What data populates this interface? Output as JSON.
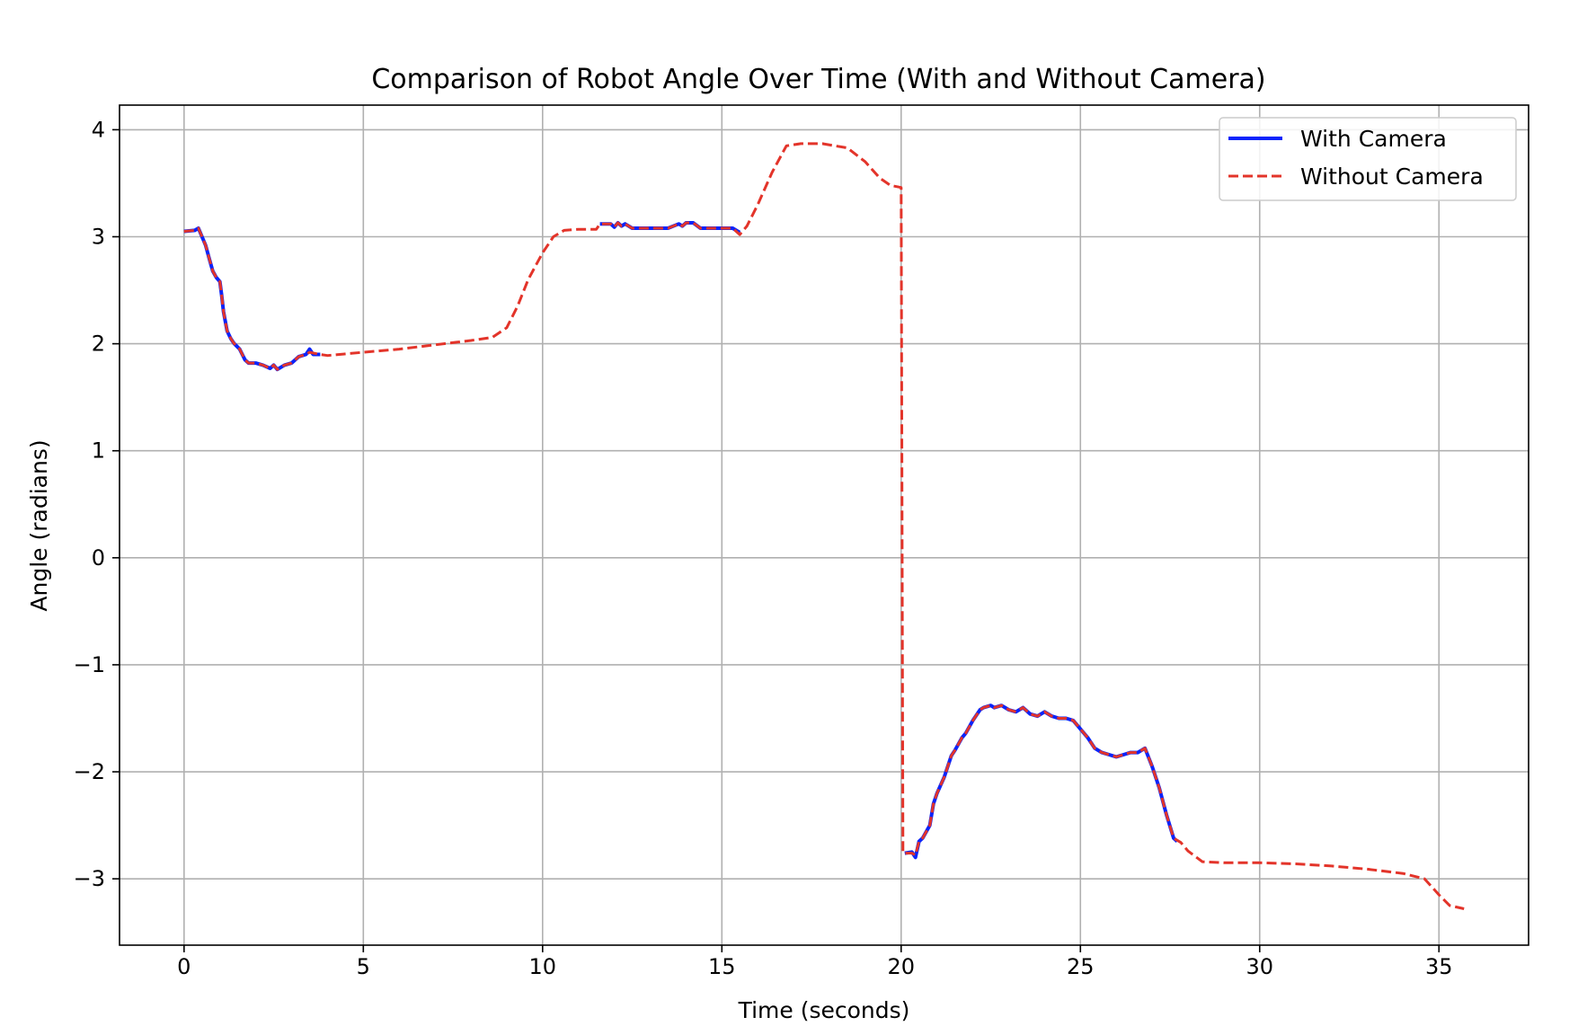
{
  "chart_data": {
    "type": "line",
    "title": "Comparison of Robot Angle Over Time (With and Without Camera)",
    "xlabel": "Time (seconds)",
    "ylabel": "Angle (radians)",
    "xlim": [
      -1.8,
      37.5
    ],
    "ylim": [
      -3.62,
      4.23
    ],
    "xticks": [
      0,
      5,
      10,
      15,
      20,
      25,
      30,
      35
    ],
    "yticks": [
      -3,
      -2,
      -1,
      0,
      1,
      2,
      3,
      4
    ],
    "xtick_labels": [
      "0",
      "5",
      "10",
      "15",
      "20",
      "25",
      "30",
      "35"
    ],
    "ytick_labels": [
      "−3",
      "−2",
      "−1",
      "0",
      "1",
      "2",
      "3",
      "4"
    ],
    "grid": true,
    "legend_position": "top-right",
    "series": [
      {
        "name": "With Camera",
        "color": "#0b24fb",
        "style": "solid",
        "segments": [
          [
            [
              0,
              3.05
            ],
            [
              0.3,
              3.06
            ],
            [
              0.4,
              3.08
            ],
            [
              0.5,
              3.0
            ],
            [
              0.6,
              2.92
            ],
            [
              0.7,
              2.8
            ],
            [
              0.8,
              2.68
            ],
            [
              0.9,
              2.62
            ],
            [
              1.0,
              2.58
            ],
            [
              1.05,
              2.45
            ],
            [
              1.1,
              2.3
            ],
            [
              1.2,
              2.12
            ],
            [
              1.3,
              2.05
            ],
            [
              1.4,
              2.0
            ],
            [
              1.55,
              1.95
            ],
            [
              1.7,
              1.85
            ],
            [
              1.8,
              1.82
            ],
            [
              2.0,
              1.82
            ],
            [
              2.2,
              1.8
            ],
            [
              2.4,
              1.77
            ],
            [
              2.5,
              1.8
            ],
            [
              2.6,
              1.76
            ],
            [
              2.8,
              1.8
            ],
            [
              3.0,
              1.82
            ],
            [
              3.2,
              1.88
            ],
            [
              3.4,
              1.9
            ],
            [
              3.5,
              1.95
            ],
            [
              3.6,
              1.9
            ],
            [
              3.8,
              1.9
            ]
          ],
          [
            [
              11.6,
              3.12
            ],
            [
              11.9,
              3.12
            ],
            [
              12.0,
              3.09
            ],
            [
              12.1,
              3.13
            ],
            [
              12.2,
              3.1
            ],
            [
              12.3,
              3.12
            ],
            [
              12.5,
              3.08
            ],
            [
              13.0,
              3.08
            ],
            [
              13.5,
              3.08
            ],
            [
              13.8,
              3.12
            ],
            [
              13.9,
              3.1
            ],
            [
              14.0,
              3.13
            ],
            [
              14.2,
              3.13
            ],
            [
              14.4,
              3.08
            ],
            [
              15.0,
              3.08
            ],
            [
              15.3,
              3.08
            ],
            [
              15.5,
              3.04
            ]
          ],
          [
            [
              20.1,
              -2.76
            ],
            [
              20.3,
              -2.75
            ],
            [
              20.4,
              -2.8
            ],
            [
              20.5,
              -2.65
            ],
            [
              20.6,
              -2.62
            ],
            [
              20.8,
              -2.5
            ],
            [
              20.9,
              -2.3
            ],
            [
              21.0,
              -2.2
            ],
            [
              21.2,
              -2.05
            ],
            [
              21.4,
              -1.85
            ],
            [
              21.5,
              -1.8
            ],
            [
              21.7,
              -1.68
            ],
            [
              21.8,
              -1.64
            ],
            [
              22.0,
              -1.52
            ],
            [
              22.2,
              -1.42
            ],
            [
              22.3,
              -1.4
            ],
            [
              22.5,
              -1.38
            ],
            [
              22.6,
              -1.4
            ],
            [
              22.8,
              -1.38
            ],
            [
              23.0,
              -1.42
            ],
            [
              23.2,
              -1.44
            ],
            [
              23.4,
              -1.4
            ],
            [
              23.6,
              -1.46
            ],
            [
              23.8,
              -1.48
            ],
            [
              24.0,
              -1.44
            ],
            [
              24.2,
              -1.48
            ],
            [
              24.4,
              -1.5
            ],
            [
              24.6,
              -1.5
            ],
            [
              24.8,
              -1.52
            ],
            [
              25.0,
              -1.6
            ],
            [
              25.2,
              -1.68
            ],
            [
              25.4,
              -1.78
            ],
            [
              25.6,
              -1.82
            ],
            [
              25.8,
              -1.84
            ],
            [
              26.0,
              -1.86
            ],
            [
              26.2,
              -1.84
            ],
            [
              26.4,
              -1.82
            ],
            [
              26.6,
              -1.82
            ],
            [
              26.8,
              -1.78
            ],
            [
              27.0,
              -1.95
            ],
            [
              27.2,
              -2.15
            ],
            [
              27.4,
              -2.4
            ],
            [
              27.6,
              -2.62
            ],
            [
              27.7,
              -2.65
            ]
          ]
        ]
      },
      {
        "name": "Without Camera",
        "color": "#e3342a",
        "style": "dashed",
        "segments": [
          [
            [
              0,
              3.05
            ],
            [
              0.3,
              3.06
            ],
            [
              0.4,
              3.08
            ],
            [
              0.5,
              3.0
            ],
            [
              0.6,
              2.92
            ],
            [
              0.7,
              2.8
            ],
            [
              0.8,
              2.68
            ],
            [
              0.9,
              2.62
            ],
            [
              1.0,
              2.58
            ],
            [
              1.05,
              2.45
            ],
            [
              1.1,
              2.3
            ],
            [
              1.2,
              2.12
            ],
            [
              1.3,
              2.05
            ],
            [
              1.4,
              2.0
            ],
            [
              1.55,
              1.95
            ],
            [
              1.7,
              1.85
            ],
            [
              1.8,
              1.82
            ],
            [
              2.0,
              1.82
            ],
            [
              2.2,
              1.8
            ],
            [
              2.4,
              1.77
            ],
            [
              2.5,
              1.8
            ],
            [
              2.6,
              1.76
            ],
            [
              2.8,
              1.8
            ],
            [
              3.0,
              1.82
            ],
            [
              3.2,
              1.88
            ],
            [
              3.4,
              1.9
            ],
            [
              3.5,
              1.92
            ],
            [
              3.8,
              1.9
            ],
            [
              4.0,
              1.89
            ],
            [
              5,
              1.92
            ],
            [
              6,
              1.95
            ],
            [
              7,
              1.99
            ],
            [
              8,
              2.03
            ],
            [
              8.6,
              2.06
            ],
            [
              9.0,
              2.15
            ],
            [
              9.3,
              2.35
            ],
            [
              9.6,
              2.6
            ],
            [
              10.0,
              2.85
            ],
            [
              10.3,
              3.0
            ],
            [
              10.6,
              3.06
            ],
            [
              11.0,
              3.07
            ],
            [
              11.5,
              3.07
            ],
            [
              11.6,
              3.12
            ],
            [
              11.9,
              3.12
            ],
            [
              12.0,
              3.09
            ],
            [
              12.1,
              3.13
            ],
            [
              12.2,
              3.1
            ],
            [
              12.3,
              3.12
            ],
            [
              12.5,
              3.08
            ],
            [
              13.0,
              3.08
            ],
            [
              13.5,
              3.08
            ],
            [
              13.8,
              3.12
            ],
            [
              13.9,
              3.1
            ],
            [
              14.0,
              3.13
            ],
            [
              14.2,
              3.13
            ],
            [
              14.4,
              3.08
            ],
            [
              15.0,
              3.08
            ],
            [
              15.3,
              3.08
            ],
            [
              15.5,
              3.02
            ],
            [
              15.7,
              3.1
            ],
            [
              16.0,
              3.3
            ],
            [
              16.4,
              3.6
            ],
            [
              16.8,
              3.85
            ],
            [
              17.2,
              3.87
            ],
            [
              17.8,
              3.87
            ],
            [
              18.5,
              3.83
            ],
            [
              19.0,
              3.7
            ],
            [
              19.4,
              3.55
            ],
            [
              19.7,
              3.48
            ],
            [
              20.0,
              3.46
            ],
            [
              20.05,
              -2.76
            ],
            [
              20.3,
              -2.76
            ],
            [
              20.4,
              -2.78
            ],
            [
              20.5,
              -2.65
            ],
            [
              20.6,
              -2.62
            ],
            [
              20.8,
              -2.5
            ],
            [
              20.9,
              -2.3
            ],
            [
              21.0,
              -2.2
            ],
            [
              21.2,
              -2.05
            ],
            [
              21.4,
              -1.85
            ],
            [
              21.5,
              -1.8
            ],
            [
              21.7,
              -1.68
            ],
            [
              21.8,
              -1.64
            ],
            [
              22.0,
              -1.52
            ],
            [
              22.2,
              -1.42
            ],
            [
              22.3,
              -1.4
            ],
            [
              22.5,
              -1.38
            ],
            [
              22.6,
              -1.4
            ],
            [
              22.8,
              -1.38
            ],
            [
              23.0,
              -1.42
            ],
            [
              23.2,
              -1.44
            ],
            [
              23.4,
              -1.4
            ],
            [
              23.6,
              -1.46
            ],
            [
              23.8,
              -1.48
            ],
            [
              24.0,
              -1.44
            ],
            [
              24.2,
              -1.48
            ],
            [
              24.4,
              -1.5
            ],
            [
              24.6,
              -1.5
            ],
            [
              24.8,
              -1.52
            ],
            [
              25.0,
              -1.6
            ],
            [
              25.2,
              -1.68
            ],
            [
              25.4,
              -1.78
            ],
            [
              25.6,
              -1.82
            ],
            [
              25.8,
              -1.84
            ],
            [
              26.0,
              -1.86
            ],
            [
              26.2,
              -1.84
            ],
            [
              26.4,
              -1.82
            ],
            [
              26.6,
              -1.82
            ],
            [
              26.8,
              -1.78
            ],
            [
              27.0,
              -1.95
            ],
            [
              27.2,
              -2.15
            ],
            [
              27.4,
              -2.4
            ],
            [
              27.6,
              -2.62
            ],
            [
              27.8,
              -2.66
            ],
            [
              28.0,
              -2.74
            ],
            [
              28.4,
              -2.84
            ],
            [
              29,
              -2.85
            ],
            [
              30,
              -2.85
            ],
            [
              31,
              -2.86
            ],
            [
              32,
              -2.88
            ],
            [
              33,
              -2.91
            ],
            [
              34,
              -2.95
            ],
            [
              34.6,
              -3.0
            ],
            [
              35.0,
              -3.15
            ],
            [
              35.3,
              -3.25
            ],
            [
              35.7,
              -3.28
            ]
          ]
        ]
      }
    ]
  }
}
